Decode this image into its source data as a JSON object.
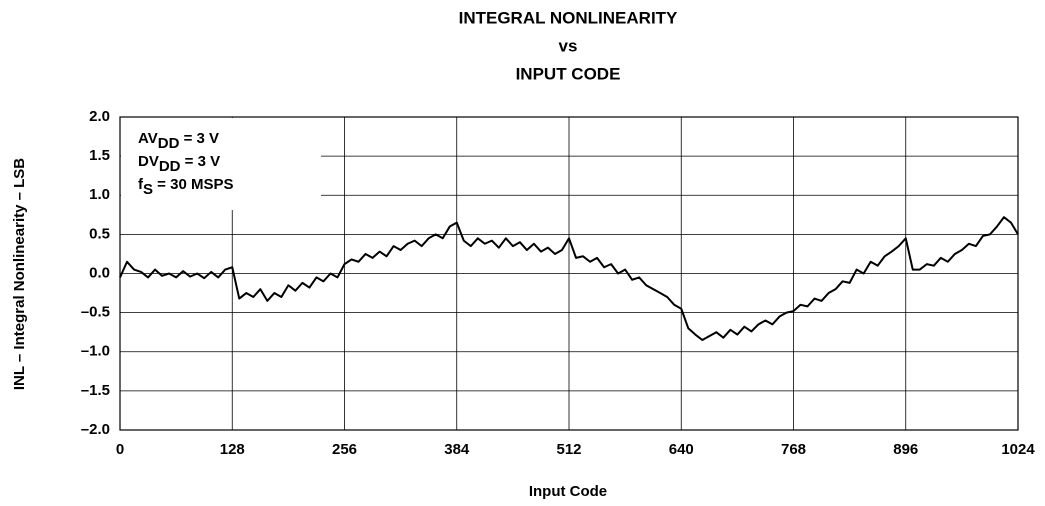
{
  "chart_data": {
    "type": "line",
    "title": [
      "INTEGRAL NONLINEARITY",
      "vs",
      "INPUT CODE"
    ],
    "xlabel": "Input Code",
    "ylabel": "INL – Integral Nonlinearity – LSB",
    "annotations": [
      {
        "main": "AV",
        "sub": "DD",
        "rest": " = 3 V"
      },
      {
        "main": "DV",
        "sub": "DD",
        "rest": " = 3 V"
      },
      {
        "main": "f",
        "sub": "S",
        "rest": " = 30 MSPS"
      }
    ],
    "xlim": [
      0,
      1024
    ],
    "ylim": [
      -2,
      2
    ],
    "xticks": [
      0,
      128,
      256,
      384,
      512,
      640,
      768,
      896,
      1024
    ],
    "yticks": [
      {
        "value": 2,
        "label": "2.0"
      },
      {
        "value": 1.5,
        "label": "1.5"
      },
      {
        "value": 1,
        "label": "1.0"
      },
      {
        "value": 0.5,
        "label": "0.5"
      },
      {
        "value": 0,
        "label": "0.0"
      },
      {
        "value": -0.5,
        "label": "–0.5"
      },
      {
        "value": -1,
        "label": "–1.0"
      },
      {
        "value": -1.5,
        "label": "–1.5"
      },
      {
        "value": -2,
        "label": "–2.0"
      }
    ],
    "grid": true,
    "x": [
      0,
      8,
      16,
      24,
      32,
      40,
      48,
      56,
      64,
      72,
      80,
      88,
      96,
      104,
      112,
      120,
      128,
      136,
      144,
      152,
      160,
      168,
      176,
      184,
      192,
      200,
      208,
      216,
      224,
      232,
      240,
      248,
      256,
      264,
      272,
      280,
      288,
      296,
      304,
      312,
      320,
      328,
      336,
      344,
      352,
      360,
      368,
      376,
      384,
      392,
      400,
      408,
      416,
      424,
      432,
      440,
      448,
      456,
      464,
      472,
      480,
      488,
      496,
      504,
      512,
      520,
      528,
      536,
      544,
      552,
      560,
      568,
      576,
      584,
      592,
      600,
      608,
      616,
      624,
      632,
      640,
      648,
      656,
      664,
      672,
      680,
      688,
      696,
      704,
      712,
      720,
      728,
      736,
      744,
      752,
      760,
      768,
      776,
      784,
      792,
      800,
      808,
      816,
      824,
      832,
      840,
      848,
      856,
      864,
      872,
      880,
      888,
      896,
      904,
      912,
      920,
      928,
      936,
      944,
      952,
      960,
      968,
      976,
      984,
      992,
      1000,
      1008,
      1016,
      1024
    ],
    "series": [
      {
        "color": "#000000",
        "values": [
          -0.05,
          0.15,
          0.05,
          0.02,
          -0.05,
          0.05,
          -0.03,
          0.0,
          -0.05,
          0.03,
          -0.04,
          0.0,
          -0.06,
          0.02,
          -0.05,
          0.05,
          0.08,
          -0.32,
          -0.25,
          -0.3,
          -0.2,
          -0.35,
          -0.25,
          -0.3,
          -0.15,
          -0.22,
          -0.12,
          -0.18,
          -0.05,
          -0.1,
          0.0,
          -0.05,
          0.12,
          0.18,
          0.15,
          0.25,
          0.2,
          0.28,
          0.22,
          0.35,
          0.3,
          0.38,
          0.42,
          0.35,
          0.45,
          0.5,
          0.45,
          0.6,
          0.65,
          0.42,
          0.35,
          0.45,
          0.38,
          0.42,
          0.33,
          0.45,
          0.35,
          0.4,
          0.3,
          0.38,
          0.28,
          0.33,
          0.25,
          0.3,
          0.45,
          0.2,
          0.22,
          0.15,
          0.2,
          0.08,
          0.12,
          0.0,
          0.05,
          -0.08,
          -0.05,
          -0.15,
          -0.2,
          -0.25,
          -0.3,
          -0.4,
          -0.45,
          -0.7,
          -0.78,
          -0.85,
          -0.8,
          -0.75,
          -0.82,
          -0.72,
          -0.78,
          -0.68,
          -0.74,
          -0.65,
          -0.6,
          -0.65,
          -0.55,
          -0.5,
          -0.48,
          -0.4,
          -0.42,
          -0.32,
          -0.35,
          -0.25,
          -0.2,
          -0.1,
          -0.12,
          0.05,
          0.0,
          0.15,
          0.1,
          0.22,
          0.28,
          0.35,
          0.45,
          0.05,
          0.05,
          0.12,
          0.1,
          0.2,
          0.15,
          0.25,
          0.3,
          0.38,
          0.35,
          0.48,
          0.5,
          0.6,
          0.72,
          0.65,
          0.5
        ]
      }
    ]
  }
}
